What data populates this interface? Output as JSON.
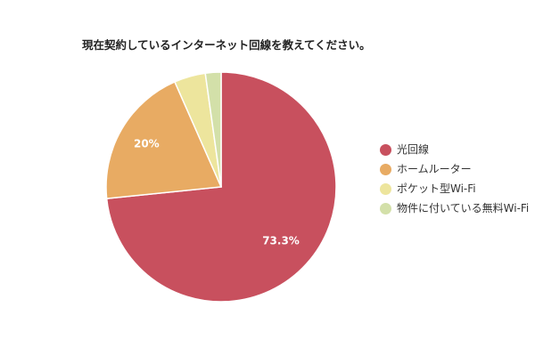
{
  "title": "現在契約しているインターネット回線を教えてください。",
  "chart_data": {
    "type": "pie",
    "title": "現在契約しているインターネット回線を教えてください。",
    "categories": [
      "光回線",
      "ホームルーター",
      "ポケット型Wi-Fi",
      "物件に付いている無料Wi-Fi"
    ],
    "values": [
      73.3,
      20,
      4.4,
      2.2
    ],
    "colors": [
      "#C8505E",
      "#E8AB63",
      "#EDE59D",
      "#D3E0A9"
    ],
    "data_labels": [
      "73.3%",
      "20%",
      "",
      ""
    ],
    "start_angle_deg": 0,
    "direction": "clockwise",
    "legend_position": "right",
    "center": [
      248,
      210
    ],
    "radius": 129
  },
  "legend": {
    "items": [
      {
        "label": "光回線",
        "color": "#C8505E"
      },
      {
        "label": "ホームルーター",
        "color": "#E8AB63"
      },
      {
        "label": "ポケット型Wi-Fi",
        "color": "#EDE59D"
      },
      {
        "label": "物件に付いている無料Wi-Fi",
        "color": "#D3E0A9"
      }
    ]
  }
}
